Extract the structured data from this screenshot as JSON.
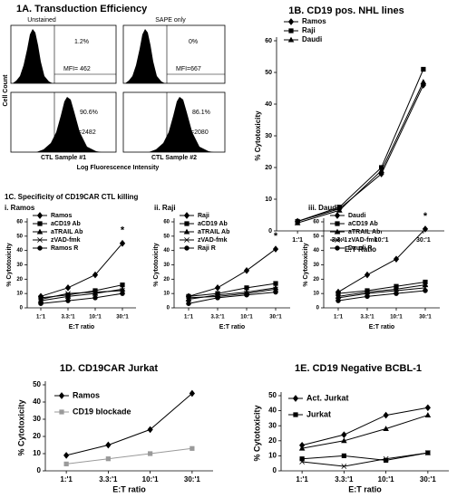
{
  "flow_cytometry": {
    "title": "1A. Transduction Efficiency",
    "column_labels": [
      "Unstained",
      "SAPE only"
    ],
    "plots": [
      {
        "percent": "1.2%",
        "mfi": "MFI= 462"
      },
      {
        "percent": "0%",
        "mfi": "MFI=667"
      },
      {
        "percent": "90.6%",
        "mfi": "MFI=2482"
      },
      {
        "percent": "86.1%",
        "mfi": "MFI=2080"
      }
    ],
    "sample_labels": [
      "CTL Sample #1",
      "CTL Sample #2"
    ],
    "y_label": "Cell Count",
    "x_label": "Log Fluorescence Intensity"
  },
  "chart_data": [
    {
      "type": "line",
      "title": "1B. CD19 pos. NHL lines",
      "x_label": "E:T Ratio",
      "y_label": "% Cytotoxicity",
      "categories": [
        "1:'1",
        "3.3:'1",
        "10:'1",
        "30:'1"
      ],
      "ylim": [
        0,
        60
      ],
      "yticks": [
        0,
        10,
        20,
        30,
        40,
        50,
        60
      ],
      "legend": "top-left",
      "series": [
        {
          "name": "Ramos",
          "color": "#000000",
          "marker": "diamond",
          "values": [
            3,
            7,
            18,
            46
          ]
        },
        {
          "name": "Raji",
          "color": "#000000",
          "marker": "square",
          "values": [
            3,
            7.5,
            20,
            51
          ]
        },
        {
          "name": "Daudi",
          "color": "#000000",
          "marker": "triangle",
          "values": [
            2.5,
            6.5,
            19,
            47
          ]
        }
      ]
    },
    {
      "type": "line",
      "group_title": "1C. Specificity of CD19CAR CTL killing",
      "title": "i. Ramos",
      "x_label": "E:T ratio",
      "y_label": "% Cytotoxicity",
      "categories": [
        "1:'1",
        "3.3:'1",
        "10:'1",
        "30:'1"
      ],
      "ylim": [
        0,
        60
      ],
      "yticks": [
        0,
        10,
        20,
        30,
        40,
        50,
        60
      ],
      "legend": "top-left",
      "annotation": "*",
      "series": [
        {
          "name": "Ramos",
          "color": "#000000",
          "marker": "diamond",
          "values": [
            8,
            14,
            23,
            45
          ]
        },
        {
          "name": "aCD19 Ab",
          "color": "#000000",
          "marker": "square",
          "values": [
            7,
            9,
            12,
            16
          ]
        },
        {
          "name": "aTRAIL Ab",
          "color": "#000000",
          "marker": "triangle",
          "values": [
            5,
            8,
            10,
            13
          ]
        },
        {
          "name": "zVAD-fmk",
          "color": "#000000",
          "marker": "cross",
          "values": [
            6,
            10,
            11,
            12
          ]
        },
        {
          "name": "Ramos R",
          "color": "#000000",
          "marker": "circle",
          "values": [
            3,
            5,
            7,
            10
          ]
        }
      ]
    },
    {
      "type": "line",
      "title": "ii. Raji",
      "x_label": "E:T ratio",
      "y_label": "% Cytotoxicity",
      "categories": [
        "1:'1",
        "3.3:'1",
        "10:'1",
        "30:'1"
      ],
      "ylim": [
        0,
        60
      ],
      "yticks": [
        0,
        10,
        20,
        30,
        40,
        50,
        60
      ],
      "legend": "top-left",
      "annotation": "*",
      "series": [
        {
          "name": "Raji",
          "color": "#000000",
          "marker": "diamond",
          "values": [
            8,
            14,
            26,
            41
          ]
        },
        {
          "name": "aCD19 Ab",
          "color": "#000000",
          "marker": "square",
          "values": [
            8,
            10,
            14,
            17
          ]
        },
        {
          "name": "aTRAIL Ab",
          "color": "#000000",
          "marker": "triangle",
          "values": [
            6,
            9,
            11,
            14
          ]
        },
        {
          "name": "zVAD-fmk",
          "color": "#000000",
          "marker": "cross",
          "values": [
            7,
            8,
            10,
            13
          ]
        },
        {
          "name": "Raji R",
          "color": "#000000",
          "marker": "circle",
          "values": [
            3,
            7,
            9,
            11
          ]
        }
      ]
    },
    {
      "type": "line",
      "title": "iii. Daudi",
      "x_label": "E:T ratio",
      "y_label": "% Cytotoxicity",
      "categories": [
        "1:'1",
        "3.3:'1",
        "10:'1",
        "30:'1"
      ],
      "ylim": [
        0,
        60
      ],
      "yticks": [
        0,
        10,
        20,
        30,
        40,
        50,
        60
      ],
      "legend": "top-left",
      "annotation": "*",
      "series": [
        {
          "name": "Daudi",
          "color": "#000000",
          "marker": "diamond",
          "values": [
            11,
            23,
            34,
            55
          ]
        },
        {
          "name": "aCD19 Ab",
          "color": "#000000",
          "marker": "square",
          "values": [
            10,
            12,
            15,
            18
          ]
        },
        {
          "name": "aTRAIL Ab",
          "color": "#000000",
          "marker": "triangle",
          "values": [
            8,
            11,
            13,
            16
          ]
        },
        {
          "name": "zVAD-fmk",
          "color": "#000000",
          "marker": "cross",
          "values": [
            7,
            10,
            12,
            14
          ]
        },
        {
          "name": "Daudi R",
          "color": "#000000",
          "marker": "circle",
          "values": [
            5,
            8,
            10,
            12
          ]
        }
      ]
    },
    {
      "type": "line",
      "title": "1D. CD19CAR Jurkat",
      "x_label": "E:T ratio",
      "y_label": "% Cytotoxicity",
      "categories": [
        "1:'1",
        "3.3:'1",
        "10:'1",
        "30:'1"
      ],
      "ylim": [
        0,
        50
      ],
      "yticks": [
        0,
        10,
        20,
        30,
        40,
        50
      ],
      "legend": "top-left",
      "series": [
        {
          "name": "Ramos",
          "color": "#000000",
          "marker": "diamond",
          "values": [
            9,
            15,
            24,
            45
          ]
        },
        {
          "name": "CD19 blockade",
          "color": "#9a9a9a",
          "marker": "square",
          "values": [
            4,
            7,
            10,
            13
          ]
        }
      ]
    },
    {
      "type": "line",
      "title": "1E. CD19 Negative BCBL-1",
      "x_label": "E:T ratio",
      "y_label": "% Cytotoxicity",
      "categories": [
        "1:'1",
        "3.3:'1",
        "10:'1",
        "30:'1"
      ],
      "ylim": [
        0,
        50
      ],
      "yticks": [
        0,
        10,
        20,
        30,
        40,
        50
      ],
      "legend": "top-left",
      "series": [
        {
          "name": "Act. Jurkat",
          "color": "#000000",
          "marker": "diamond",
          "values": [
            17,
            24,
            37,
            42
          ]
        },
        {
          "color": "#000000",
          "marker": "triangle",
          "values": [
            15,
            20,
            28,
            37
          ]
        },
        {
          "name": "Jurkat",
          "color": "#000000",
          "marker": "square",
          "values": [
            8,
            10,
            7,
            12
          ]
        },
        {
          "color": "#000000",
          "marker": "cross",
          "values": [
            6,
            3,
            8,
            12
          ]
        }
      ]
    }
  ]
}
